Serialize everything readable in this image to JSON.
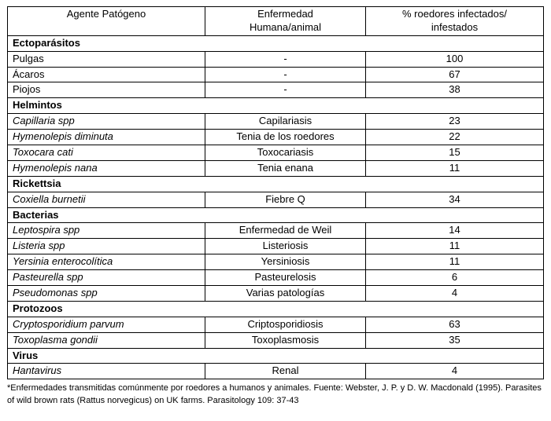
{
  "table": {
    "headers": [
      "Agente Patógeno",
      "Enfermedad\nHumana/animal",
      "% roedores infectados/\ninfestados"
    ],
    "rows": [
      {
        "type": "section",
        "label": "Ectoparásitos"
      },
      {
        "type": "data",
        "agent": "Pulgas",
        "italic": false,
        "disease": "-",
        "percent": "100"
      },
      {
        "type": "data",
        "agent": "Ácaros",
        "italic": false,
        "disease": "-",
        "percent": "67"
      },
      {
        "type": "data",
        "agent": "Piojos",
        "italic": false,
        "disease": "-",
        "percent": "38"
      },
      {
        "type": "section",
        "label": "Helmintos"
      },
      {
        "type": "data",
        "agent": "Capillaria spp",
        "italic": true,
        "disease": "Capilariasis",
        "percent": "23"
      },
      {
        "type": "data",
        "agent": "Hymenolepis diminuta",
        "italic": true,
        "disease": "Tenia de los roedores",
        "percent": "22"
      },
      {
        "type": "data",
        "agent": "Toxocara cati",
        "italic": true,
        "disease": "Toxocariasis",
        "percent": "15"
      },
      {
        "type": "data",
        "agent": "Hymenolepis nana",
        "italic": true,
        "disease": "Tenia enana",
        "percent": "11"
      },
      {
        "type": "section",
        "label": "Rickettsia"
      },
      {
        "type": "data",
        "agent": "Coxiella burnetii",
        "italic": true,
        "disease": "Fiebre Q",
        "percent": "34"
      },
      {
        "type": "section",
        "label": "Bacterias"
      },
      {
        "type": "data",
        "agent": "Leptospira spp",
        "italic": true,
        "disease": "Enfermedad de Weil",
        "percent": "14"
      },
      {
        "type": "data",
        "agent": "Listeria spp",
        "italic": true,
        "disease": "Listeriosis",
        "percent": "11"
      },
      {
        "type": "data",
        "agent": "Yersinia enterocolítica",
        "italic": true,
        "disease": "Yersiniosis",
        "percent": "11"
      },
      {
        "type": "data",
        "agent": "Pasteurella spp",
        "italic": true,
        "disease": "Pasteurelosis",
        "percent": "6"
      },
      {
        "type": "data",
        "agent": "Pseudomonas spp",
        "italic": true,
        "disease": "Varias patologías",
        "percent": "4"
      },
      {
        "type": "section",
        "label": "Protozoos"
      },
      {
        "type": "data",
        "agent": "Cryptosporidium parvum",
        "italic": true,
        "disease": "Criptosporidiosis",
        "percent": "63"
      },
      {
        "type": "data",
        "agent": "Toxoplasma gondii",
        "italic": true,
        "disease": "Toxoplasmosis",
        "percent": "35"
      },
      {
        "type": "section",
        "label": "Virus"
      },
      {
        "type": "data",
        "agent": "Hantavirus",
        "italic": true,
        "disease": "Renal",
        "percent": "4"
      }
    ]
  },
  "footnote": "*Enfermedades transmitidas comúnmente por roedores a humanos y animales. Fuente: Webster, J. P. y D. W. Macdonald (1995). Parasites of wild brown rats (Rattus norvegicus) on UK farms. Parasitology 109: 37-43"
}
